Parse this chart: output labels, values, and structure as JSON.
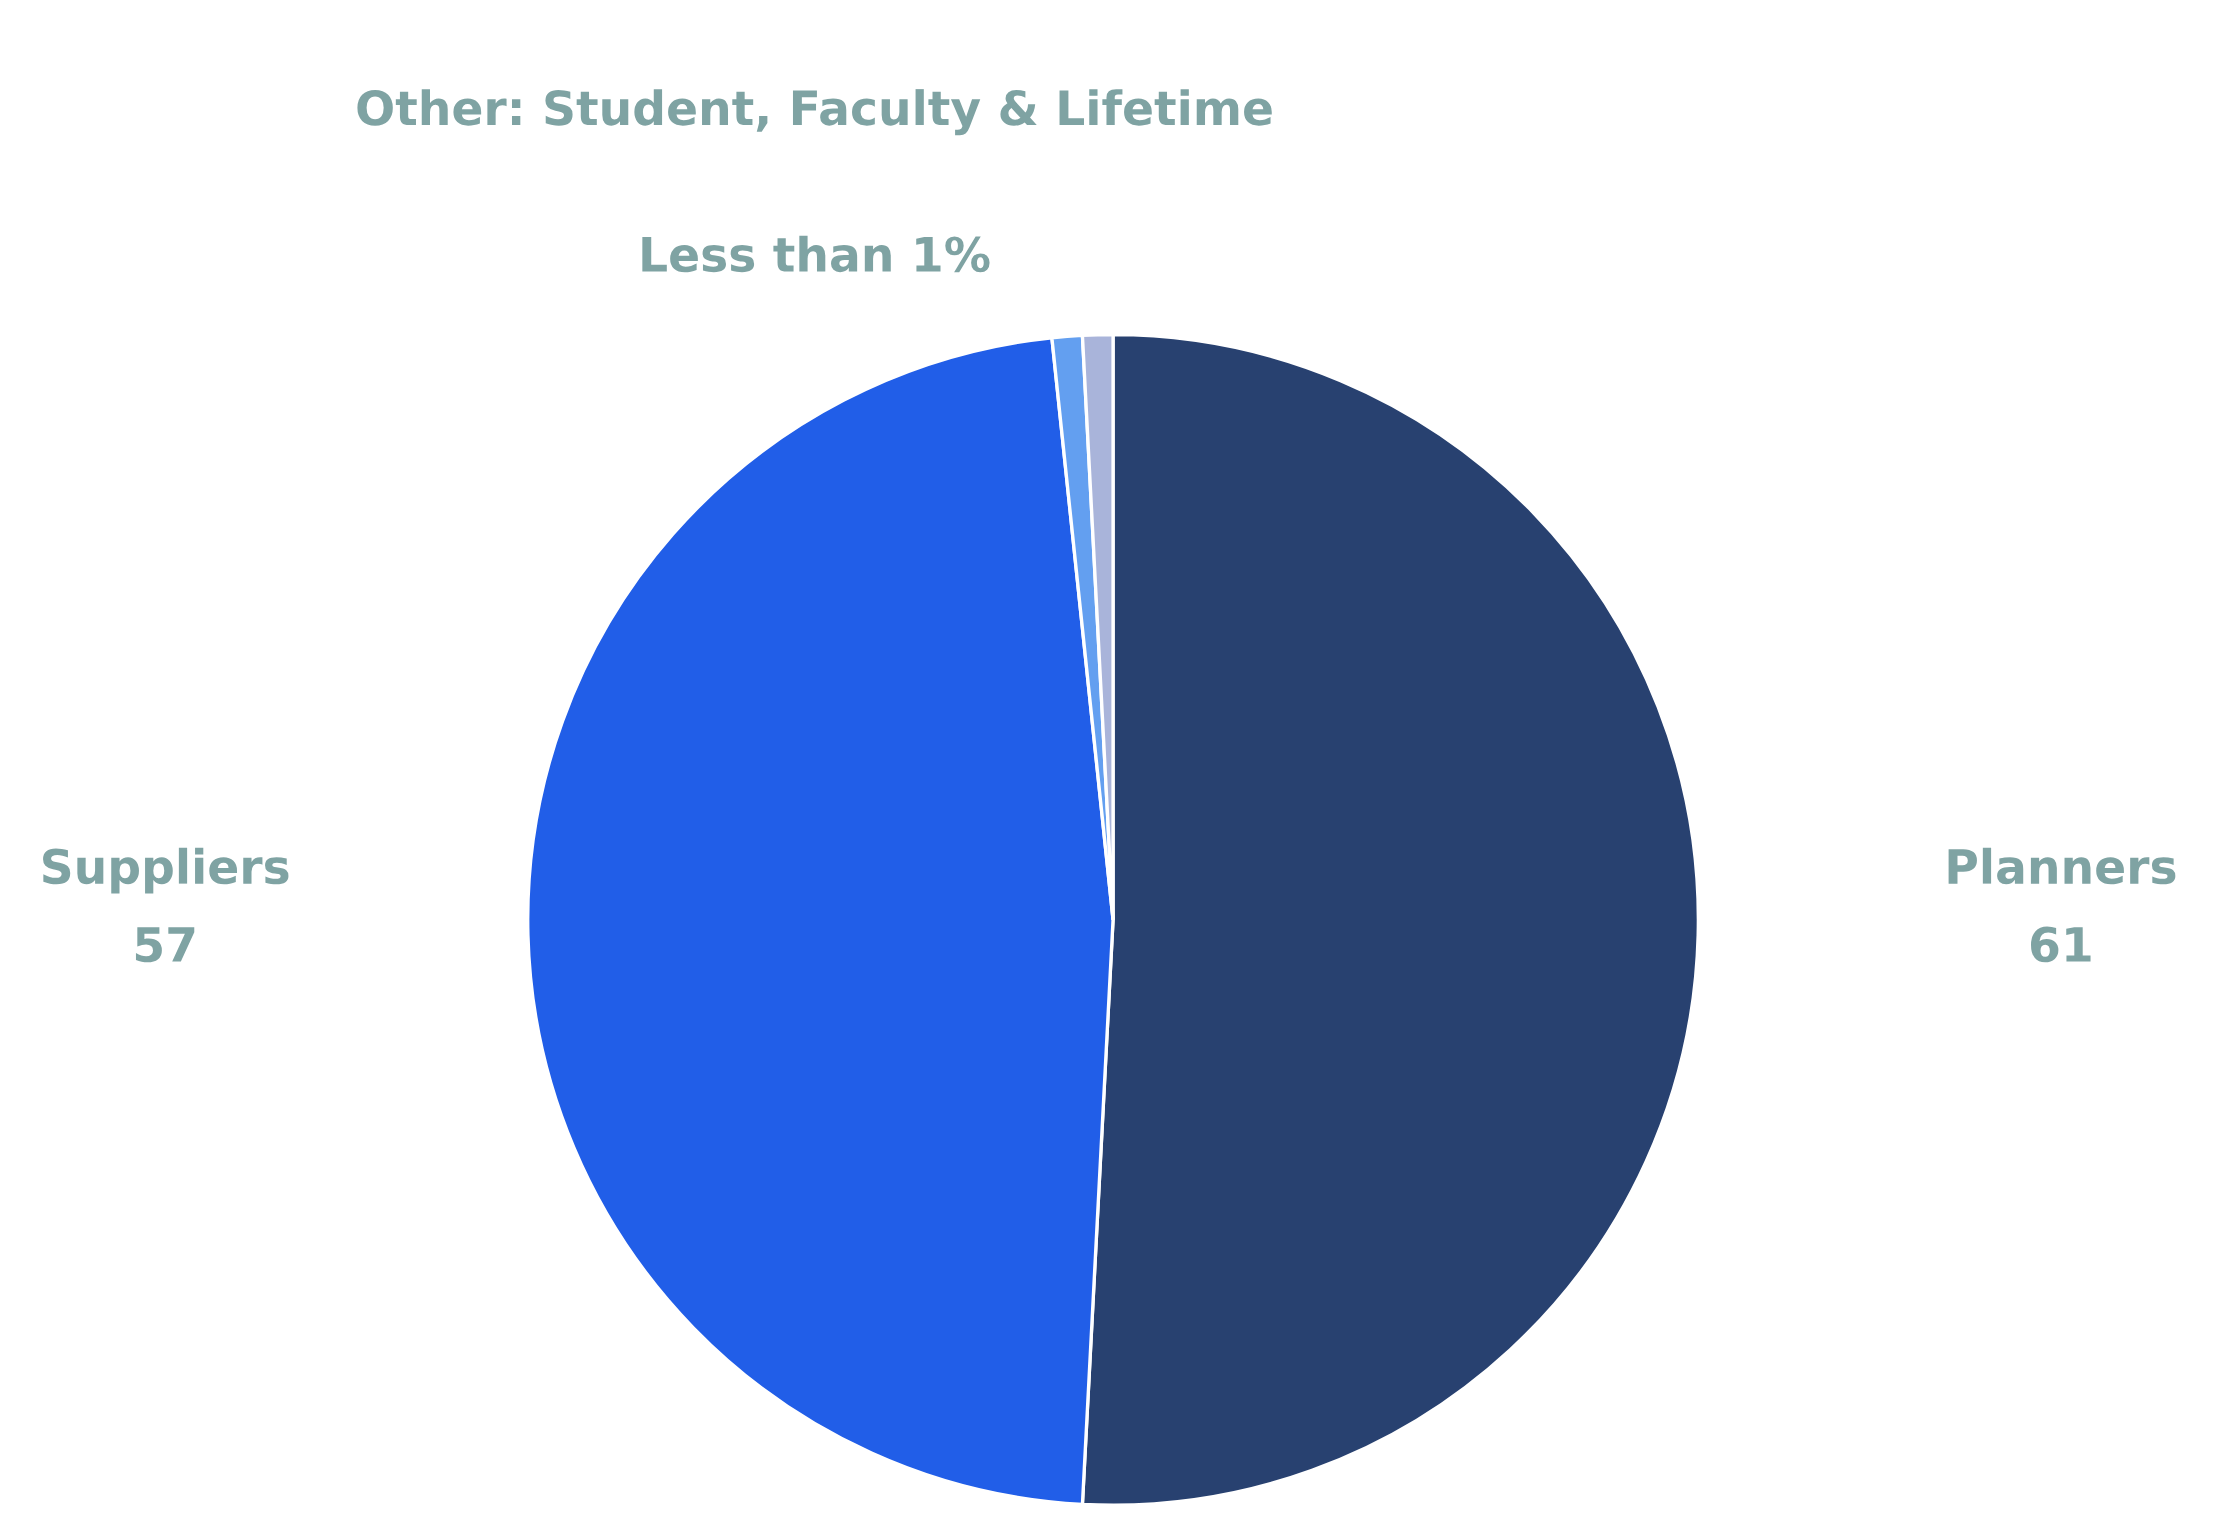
{
  "chart_data": {
    "type": "pie",
    "categories": [
      "Planners",
      "Suppliers",
      null,
      null
    ],
    "values": [
      61,
      57,
      1,
      1
    ],
    "value_labels": [
      "61",
      "57",
      null,
      null
    ],
    "colors": [
      "#284170",
      "#215ee8",
      "#639ff0",
      "#a9b4da"
    ],
    "annotations": [
      "Other: Student, Faculty & Lifetime",
      "Less than 1%"
    ]
  }
}
